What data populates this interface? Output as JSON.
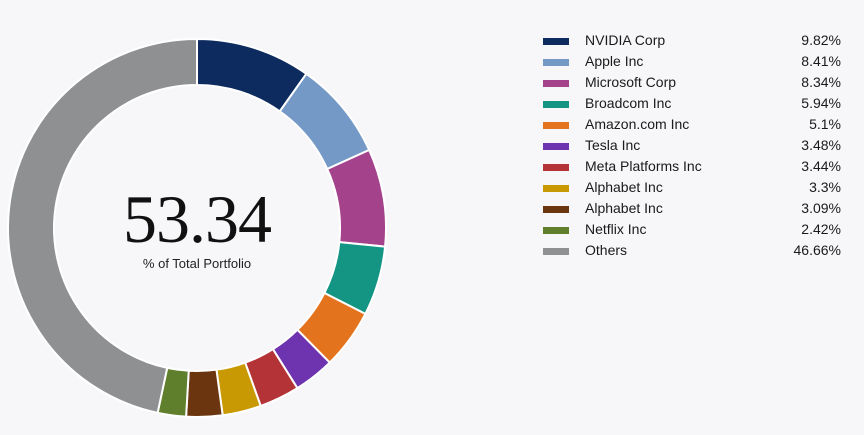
{
  "center": {
    "value": "53.34",
    "label": "% of Total Portfolio"
  },
  "chart_data": {
    "type": "pie",
    "variant": "donut",
    "start_angle_deg": 0,
    "direction": "clockwise",
    "series": [
      {
        "name": "NVIDIA Corp",
        "value": 9.82,
        "label": "9.82%",
        "color": "#0d2b5e"
      },
      {
        "name": "Apple Inc",
        "value": 8.41,
        "label": "8.41%",
        "color": "#7499c6"
      },
      {
        "name": "Microsoft Corp",
        "value": 8.34,
        "label": "8.34%",
        "color": "#a4428c"
      },
      {
        "name": "Broadcom Inc",
        "value": 5.94,
        "label": "5.94%",
        "color": "#149584"
      },
      {
        "name": "Amazon.com Inc",
        "value": 5.1,
        "label": "5.1%",
        "color": "#e4731e"
      },
      {
        "name": "Tesla Inc",
        "value": 3.48,
        "label": "3.48%",
        "color": "#6e33ae"
      },
      {
        "name": "Meta Platforms Inc",
        "value": 3.44,
        "label": "3.44%",
        "color": "#b33336"
      },
      {
        "name": "Alphabet Inc",
        "value": 3.3,
        "label": "3.3%",
        "color": "#c99904"
      },
      {
        "name": "Alphabet Inc",
        "value": 3.09,
        "label": "3.09%",
        "color": "#6b360f"
      },
      {
        "name": "Netflix Inc",
        "value": 2.42,
        "label": "2.42%",
        "color": "#5f7f2c"
      },
      {
        "name": "Others",
        "value": 46.66,
        "label": "46.66%",
        "color": "#8f9092"
      }
    ]
  }
}
